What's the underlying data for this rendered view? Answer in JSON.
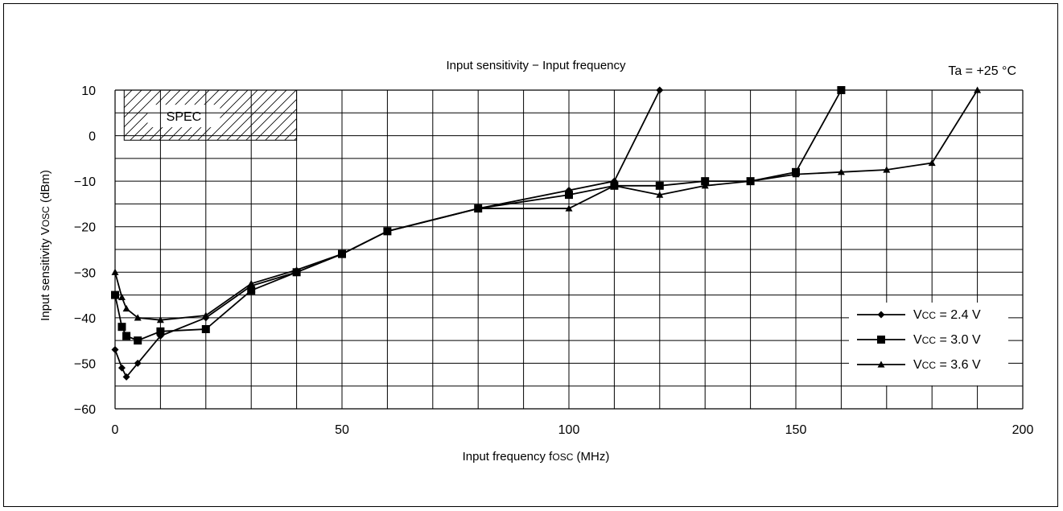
{
  "chart_data": {
    "type": "line",
    "title": "Input sensitivity − Input frequency",
    "condition": "Ta = +25 °C",
    "xlabel": {
      "main": "Input frequency f",
      "sub": "OSC",
      "unit": " (MHz)"
    },
    "ylabel": {
      "main": "Input sensitivity V",
      "sub": "OSC",
      "unit": " (dBm)"
    },
    "xlim": [
      0,
      200
    ],
    "ylim": [
      -60,
      10
    ],
    "x_ticks": [
      {
        "value": 0,
        "label": "0"
      },
      {
        "value": 50,
        "label": "50"
      },
      {
        "value": 100,
        "label": "100"
      },
      {
        "value": 150,
        "label": "150"
      },
      {
        "value": 200,
        "label": "200"
      }
    ],
    "y_ticks": [
      {
        "value": 10,
        "label": "10"
      },
      {
        "value": 0,
        "label": "0"
      },
      {
        "value": -10,
        "label": "−10"
      },
      {
        "value": -20,
        "label": "−20"
      },
      {
        "value": -30,
        "label": "−30"
      },
      {
        "value": -40,
        "label": "−40"
      },
      {
        "value": -50,
        "label": "−50"
      },
      {
        "value": -60,
        "label": "−60"
      }
    ],
    "grid_x_step": 10,
    "grid_y_step": 5,
    "grid": true,
    "spec_region": {
      "label": "SPEC",
      "x": [
        2,
        40
      ],
      "y": [
        -1,
        10
      ]
    },
    "legend_position": "bottom-right",
    "series": [
      {
        "name": {
          "prefix": "V",
          "sub": "CC",
          "suffix": " = 2.4 V"
        },
        "marker": "diamond",
        "x": [
          0,
          1.5,
          2.5,
          5,
          10,
          20,
          30,
          40,
          50,
          60,
          80,
          100,
          110,
          120
        ],
        "y": [
          -47,
          -51,
          -53,
          -50,
          -44,
          -40,
          -33,
          -30,
          -26,
          -21,
          -16,
          -12,
          -10,
          10
        ]
      },
      {
        "name": {
          "prefix": "V",
          "sub": "CC",
          "suffix": " = 3.0 V"
        },
        "marker": "square",
        "x": [
          0,
          1.5,
          2.5,
          5,
          10,
          20,
          30,
          40,
          50,
          60,
          80,
          100,
          110,
          120,
          130,
          140,
          150,
          160
        ],
        "y": [
          -35,
          -42,
          -44,
          -45,
          -43,
          -42.5,
          -34,
          -30,
          -26,
          -21,
          -16,
          -13,
          -11,
          -11,
          -10,
          -10,
          -8,
          10
        ]
      },
      {
        "name": {
          "prefix": "V",
          "sub": "CC",
          "suffix": " = 3.6 V"
        },
        "marker": "triangle",
        "x": [
          0,
          1.5,
          2.5,
          5,
          10,
          20,
          30,
          40,
          50,
          60,
          80,
          100,
          110,
          120,
          130,
          140,
          150,
          160,
          170,
          180,
          190
        ],
        "y": [
          -30,
          -35.5,
          -38,
          -40,
          -40.5,
          -39.5,
          -32.5,
          -29.5,
          -26,
          -21,
          -16,
          -16,
          -11,
          -13,
          -11,
          -10,
          -8.5,
          -8,
          -7.5,
          -6,
          10
        ]
      }
    ]
  }
}
